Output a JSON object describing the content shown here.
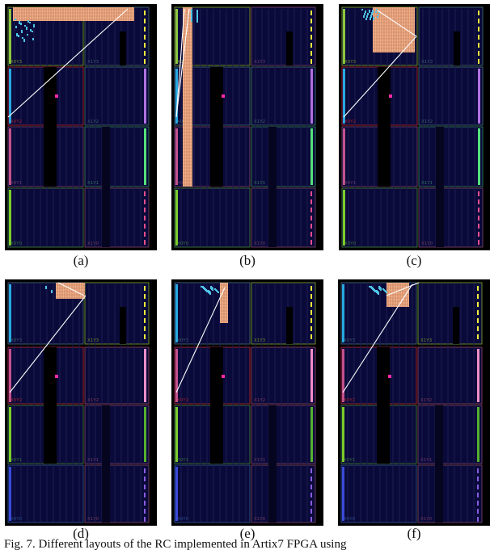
{
  "colors": {
    "frame": "#000000",
    "region_fill": "#0a0a3a",
    "region_col": "#06062a",
    "dark_col": "#000000",
    "col_line": "#1c1c50",
    "route": "#ffffff",
    "pblock_fill": "#f3b08a",
    "pblock_stripe": "#c07e5c",
    "cells": "#4fc3e6",
    "marker": "#ff2aa8"
  },
  "region_labels": [
    "X0Y3",
    "X1Y3",
    "X0Y2",
    "X1Y2",
    "X0Y1",
    "X1Y1",
    "X0Y0",
    "X1Y0"
  ],
  "panels": [
    {
      "id": "a",
      "caption": "(a)",
      "colors": {
        "border_r3_0": "#6a8a2a",
        "border_r3_1": "#3c5c6a",
        "border_r2_0": "#a02030",
        "border_r2_1": "#3a5e6e",
        "border_r1_0": "#6a3a6a",
        "border_r1_1": "#2e6e5e",
        "border_r0_0": "#3a6e3a",
        "border_r0_1": "#6a3a5e",
        "left_bar_3": "#8cc63f",
        "left_bar_2": "#27a9e1",
        "left_bar_1": "#c2528c",
        "left_bar_0": "#7ccd2a",
        "right_bar_3": "#f3ef3c",
        "right_bar_2": "#b070e0",
        "right_bar_1": "#55e07a",
        "right_bar_0": "#ff4d8d"
      }
    },
    {
      "id": "b",
      "caption": "(b)",
      "colors": {
        "border_r3_0": "#6a8a2a",
        "border_r3_1": "#6a3a6a",
        "border_r2_0": "#3a5e6e",
        "border_r2_1": "#3a5e6e",
        "border_r1_0": "#6a3a6a",
        "border_r1_1": "#2e6e5e",
        "border_r0_0": "#3a6e3a",
        "border_r0_1": "#6a3a5e",
        "left_bar_3": "#8cc63f",
        "left_bar_2": "#27a9e1",
        "left_bar_1": "#c2528c",
        "left_bar_0": "#7ccd2a",
        "right_bar_3": "#f3ef3c",
        "right_bar_2": "#b070e0",
        "right_bar_1": "#55e07a",
        "right_bar_0": "#ff4d8d"
      }
    },
    {
      "id": "c",
      "caption": "(c)",
      "colors": {
        "border_r3_0": "#6a8a2a",
        "border_r3_1": "#3c5c6a",
        "border_r2_0": "#a02030",
        "border_r2_1": "#3a5e6e",
        "border_r1_0": "#6a3a6a",
        "border_r1_1": "#2e6e5e",
        "border_r0_0": "#3a6e3a",
        "border_r0_1": "#6a3a5e",
        "left_bar_3": "#8cc63f",
        "left_bar_2": "#27a9e1",
        "left_bar_1": "#c2528c",
        "left_bar_0": "#7ccd2a",
        "right_bar_3": "#f3ef3c",
        "right_bar_2": "#b070e0",
        "right_bar_1": "#55e07a",
        "right_bar_0": "#ff4d8d"
      }
    },
    {
      "id": "d",
      "caption": "(d)",
      "colors": {
        "border_r3_0": "#3c5c6a",
        "border_r3_1": "#6a8a2a",
        "border_r2_0": "#a02030",
        "border_r2_1": "#7a3a5a",
        "border_r1_0": "#3a6e3a",
        "border_r1_1": "#6a3a6a",
        "border_r0_0": "#2a4a8a",
        "border_r0_1": "#6a3a5e",
        "left_bar_3": "#27a9e1",
        "left_bar_2": "#c2528c",
        "left_bar_1": "#7ccd2a",
        "left_bar_0": "#3a4ad8",
        "right_bar_3": "#f3ef3c",
        "right_bar_2": "#ee8ec8",
        "right_bar_1": "#55b030",
        "right_bar_0": "#8a5ce0"
      }
    },
    {
      "id": "e",
      "caption": "(e)",
      "colors": {
        "border_r3_0": "#3c5c6a",
        "border_r3_1": "#6a8a2a",
        "border_r2_0": "#a02030",
        "border_r2_1": "#7a3a5a",
        "border_r1_0": "#3a6e3a",
        "border_r1_1": "#6a3a6a",
        "border_r0_0": "#2a4a8a",
        "border_r0_1": "#6a3a5e",
        "left_bar_3": "#27a9e1",
        "left_bar_2": "#c2528c",
        "left_bar_1": "#7ccd2a",
        "left_bar_0": "#3a4ad8",
        "right_bar_3": "#f3ef3c",
        "right_bar_2": "#ee8ec8",
        "right_bar_1": "#55b030",
        "right_bar_0": "#8a5ce0"
      }
    },
    {
      "id": "f",
      "caption": "(f)",
      "colors": {
        "border_r3_0": "#3c5c6a",
        "border_r3_1": "#6a8a2a",
        "border_r2_0": "#a02030",
        "border_r2_1": "#7a3a5a",
        "border_r1_0": "#3a6e3a",
        "border_r1_1": "#6a3a6a",
        "border_r0_0": "#2a4a8a",
        "border_r0_1": "#6a3a5e",
        "left_bar_3": "#27a9e1",
        "left_bar_2": "#c2528c",
        "left_bar_1": "#7ccd2a",
        "left_bar_0": "#3a4ad8",
        "right_bar_3": "#f3ef3c",
        "right_bar_2": "#ee8ec8",
        "right_bar_1": "#55b030",
        "right_bar_0": "#8a5ce0"
      }
    }
  ],
  "figure_caption": "Fig. 7. Different layouts of the RC implemented in Artix7 FPGA using"
}
